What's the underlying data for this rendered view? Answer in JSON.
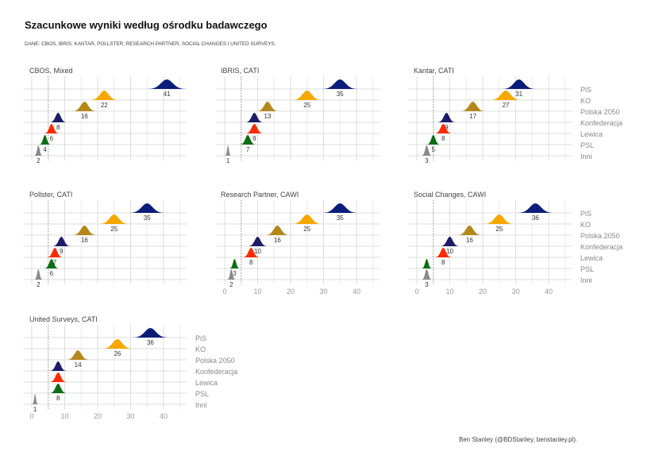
{
  "title": "Szacunkowe wyniki według ośrodku badawczego",
  "subtitle": "DANE: CBOS, IBRIS, KANTAR, POLLSTER, RESEARCH PARTNER, SOCIAL CHANGES I UNITED SURVEYS.",
  "credit": "Ben Stanley (@BDStanley, benstanley.pl).",
  "chart_data": {
    "type": "ridgeline",
    "xlim": [
      0,
      47
    ],
    "x_ticks": [
      "0",
      "10",
      "20",
      "30",
      "40"
    ],
    "threshold": 5,
    "parties": [
      "PiS",
      "KO",
      "Polska 2050",
      "Konfederacja",
      "Lewica",
      "PSL",
      "Inni"
    ],
    "colors": {
      "PiS": "#0b1d7a",
      "KO": "#f6a800",
      "Polska 2050": "#b5861a",
      "Konfederacja": "#1c1c6b",
      "Lewica": "#ff2a00",
      "PSL": "#0b6e12",
      "Inni": "#8a8a8a"
    },
    "panels": [
      {
        "title": "CBOS, Mixed",
        "values": [
          41,
          22,
          16,
          8,
          6,
          4,
          2
        ]
      },
      {
        "title": "IBRIS, CATI",
        "values": [
          35,
          25,
          13,
          9,
          9,
          7,
          1
        ]
      },
      {
        "title": "Kantar, CATI",
        "values": [
          31,
          27,
          17,
          9,
          8,
          5,
          3
        ]
      },
      {
        "title": "Pollster, CATI",
        "values": [
          35,
          25,
          16,
          9,
          7,
          6,
          2
        ]
      },
      {
        "title": "Research Partner, CAWI",
        "values": [
          35,
          25,
          16,
          10,
          8,
          3,
          2
        ]
      },
      {
        "title": "Social Changes, CAWI",
        "values": [
          36,
          25,
          16,
          10,
          8,
          3,
          3
        ]
      },
      {
        "title": "United Surveys, CATI",
        "values": [
          36,
          26,
          14,
          8,
          8,
          8,
          1
        ]
      }
    ]
  }
}
